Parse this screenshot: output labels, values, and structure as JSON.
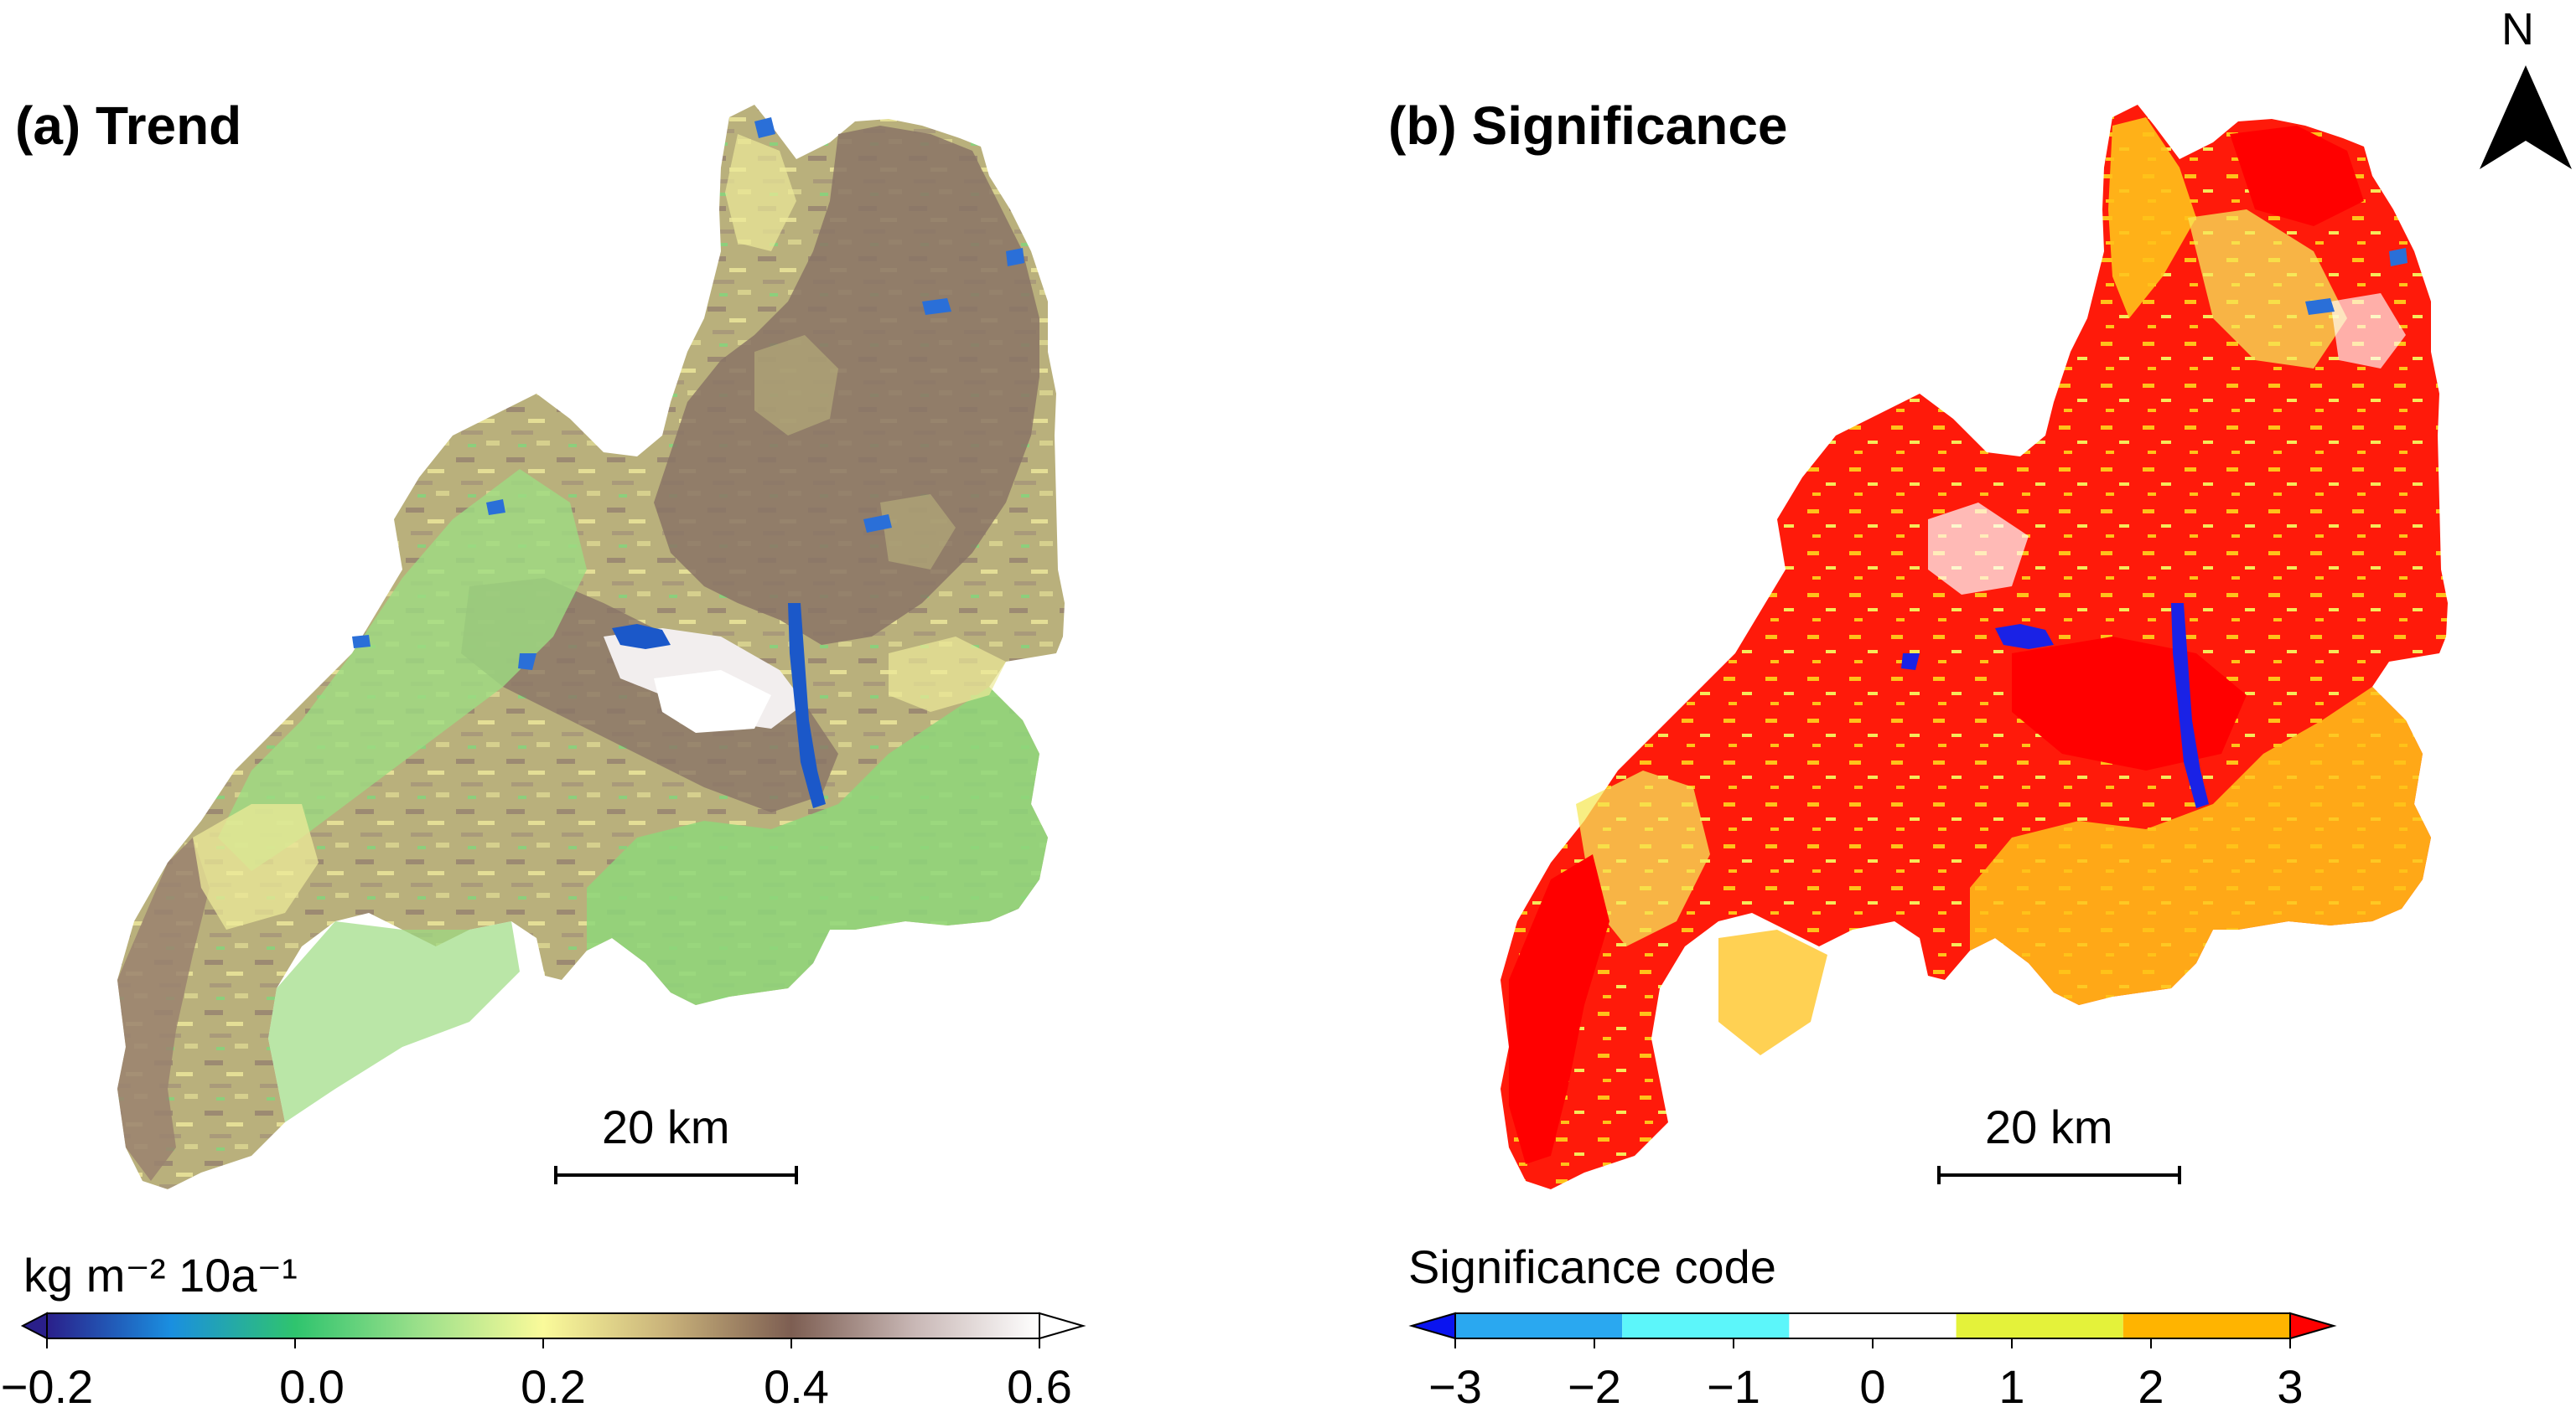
{
  "panels": {
    "trend": {
      "title": "(a) Trend",
      "scalebar_label": "20 km",
      "colorbar": {
        "unit": "kg m⁻² 10a⁻¹",
        "ticks": [
          "−0.2",
          "0.0",
          "0.2",
          "0.4",
          "0.6"
        ],
        "range": [
          -0.2,
          0.6
        ],
        "extend": "both",
        "stops": [
          {
            "value": -0.2,
            "color": "#2a1f8a"
          },
          {
            "value": -0.1,
            "color": "#1a8fe0"
          },
          {
            "value": 0.0,
            "color": "#2fc46e"
          },
          {
            "value": 0.1,
            "color": "#9be08a"
          },
          {
            "value": 0.2,
            "color": "#fafa9a"
          },
          {
            "value": 0.3,
            "color": "#c9b27a"
          },
          {
            "value": 0.4,
            "color": "#7d5e52"
          },
          {
            "value": 0.5,
            "color": "#c9b8b6"
          },
          {
            "value": 0.6,
            "color": "#ffffff"
          }
        ]
      },
      "map_colors": {
        "base": "#b9b07c",
        "green": "#8ed77a",
        "yellow": "#ecea98",
        "brown": "#8a7466",
        "water": "#1b58c9",
        "bare": "#f2eeee"
      }
    },
    "significance": {
      "title": "(b) Significance",
      "scalebar_label": "20 km",
      "colorbar": {
        "label": "Significance code",
        "ticks": [
          "−3",
          "−2",
          "−1",
          "0",
          "1",
          "2",
          "3"
        ],
        "classes": [
          {
            "code": -3,
            "color": "#0a14f0"
          },
          {
            "code": -2,
            "color": "#2aa8f0"
          },
          {
            "code": -1,
            "color": "#5cf6fa"
          },
          {
            "code": 0,
            "color": "#ffffff"
          },
          {
            "code": 1,
            "color": "#e4f23a"
          },
          {
            "code": 2,
            "color": "#ffb400"
          },
          {
            "code": 3,
            "color": "#ff0000"
          }
        ]
      },
      "map_colors": {
        "base": "#ff1a0a",
        "orange": "#ffc21a",
        "yellow": "#f6e85a",
        "white": "#ffffff",
        "water": "#1a22e6"
      }
    }
  },
  "north_arrow": {
    "label": "N"
  }
}
